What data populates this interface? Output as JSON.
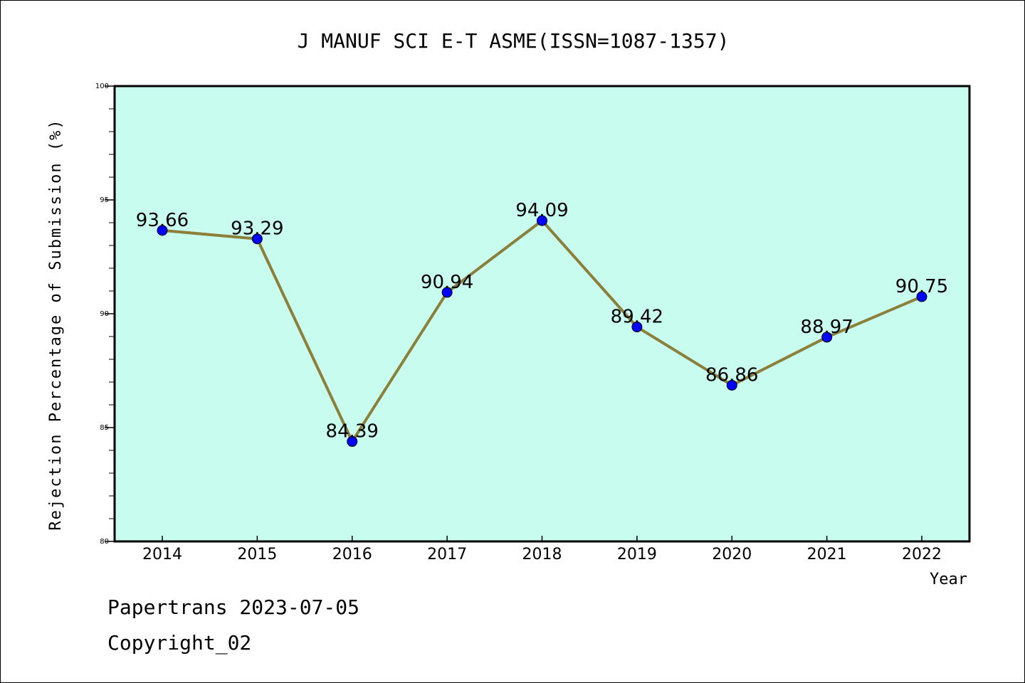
{
  "chart_data": {
    "type": "line",
    "title": "J MANUF SCI E-T ASME(ISSN=1087-1357)",
    "xlabel": "Year",
    "ylabel": "Rejection Percentage of Submission (%)",
    "categories": [
      "2014",
      "2015",
      "2016",
      "2017",
      "2018",
      "2019",
      "2020",
      "2021",
      "2022"
    ],
    "values": [
      93.66,
      93.29,
      84.39,
      90.94,
      94.09,
      89.42,
      86.86,
      88.97,
      90.75
    ],
    "data_labels": [
      "93.66",
      "93.29",
      "84.39",
      "90.94",
      "94.09",
      "89.42",
      "86.86",
      "88.97",
      "90.75"
    ],
    "ylim": [
      80,
      100
    ],
    "yticks": [
      "80",
      "85",
      "90",
      "95",
      "100"
    ],
    "grid": false,
    "colors": {
      "plot_background": "#c8fcee",
      "line": "#8b7f3a",
      "marker": "#0000ff"
    }
  },
  "footer": {
    "line1": "Papertrans 2023-07-05",
    "line2": "Copyright_02"
  }
}
